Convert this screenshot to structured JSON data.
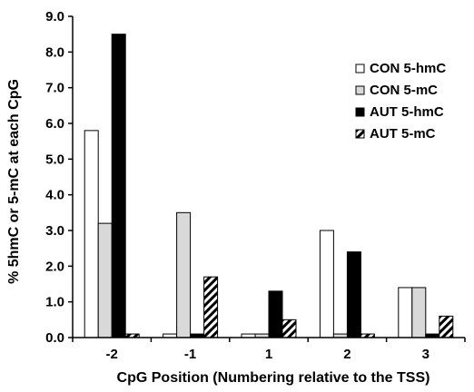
{
  "chart_data": {
    "type": "bar",
    "title": "",
    "xlabel": "CpG Position (Numbering relative to the TSS)",
    "ylabel": "% 5hmC or 5-mC at each CpG",
    "categories": [
      "-2",
      "-1",
      "1",
      "2",
      "3"
    ],
    "ylim": [
      0,
      9
    ],
    "yticks": [
      "0.0",
      "1.0",
      "2.0",
      "3.0",
      "4.0",
      "5.0",
      "6.0",
      "7.0",
      "8.0",
      "9.0"
    ],
    "grid": false,
    "legend_position": "right",
    "series": [
      {
        "name": "CON 5-hmC",
        "values": [
          5.8,
          0.1,
          0.1,
          3.0,
          1.4
        ],
        "style": "open",
        "fill": "#ffffff"
      },
      {
        "name": "CON 5-mC",
        "values": [
          3.2,
          3.5,
          0.1,
          0.1,
          1.4
        ],
        "style": "light-gray",
        "fill": "#d9d9d9"
      },
      {
        "name": "AUT 5-hmC",
        "values": [
          8.5,
          0.1,
          1.3,
          2.4,
          0.1
        ],
        "style": "solid-black",
        "fill": "#000000"
      },
      {
        "name": "AUT 5-mC",
        "values": [
          0.1,
          1.7,
          0.5,
          0.1,
          0.6
        ],
        "style": "hatched",
        "fill": "hatch"
      }
    ]
  }
}
